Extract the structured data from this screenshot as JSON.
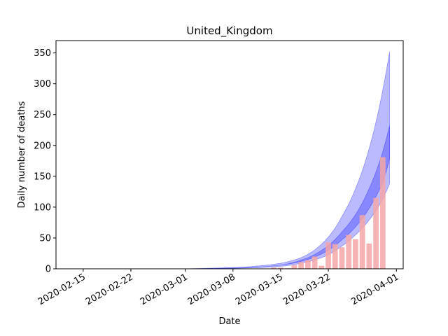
{
  "chart_data": {
    "type": "bar",
    "title": "United_Kingdom",
    "xlabel": "Date",
    "ylabel": "Daily number of deaths",
    "xlim": [
      "2020-02-11",
      "2020-04-02"
    ],
    "ylim": [
      0,
      370
    ],
    "x_ticks": [
      "2020-02-15",
      "2020-02-22",
      "2020-03-01",
      "2020-03-08",
      "2020-03-15",
      "2020-03-22",
      "2020-04-01"
    ],
    "y_ticks": [
      0,
      50,
      100,
      150,
      200,
      250,
      300,
      350
    ],
    "grid": false,
    "legend": "none",
    "colors": {
      "bars": "#f4a6a6",
      "bands": "#0000ff"
    },
    "series": [
      {
        "type": "bar",
        "dates": [
          "2020-03-14",
          "2020-03-15",
          "2020-03-16",
          "2020-03-17",
          "2020-03-18",
          "2020-03-19",
          "2020-03-20",
          "2020-03-21",
          "2020-03-22",
          "2020-03-23",
          "2020-03-24",
          "2020-03-25",
          "2020-03-26",
          "2020-03-27",
          "2020-03-28",
          "2020-03-29",
          "2020-03-30"
        ],
        "values": [
          2,
          2,
          1,
          6,
          11,
          14,
          20,
          5,
          43,
          40,
          35,
          55,
          48,
          87,
          41,
          115,
          181
        ]
      },
      {
        "type": "band",
        "dates": [
          "2020-02-12",
          "2020-02-22",
          "2020-03-01",
          "2020-03-08",
          "2020-03-12",
          "2020-03-15",
          "2020-03-18",
          "2020-03-21",
          "2020-03-24",
          "2020-03-26",
          "2020-03-28",
          "2020-03-30",
          "2020-03-31"
        ],
        "lower": [
          0,
          0,
          0,
          1,
          2,
          4,
          9,
          18,
          37,
          55,
          79,
          113,
          138
        ],
        "upper": [
          0,
          0,
          0,
          2,
          5,
          9,
          18,
          40,
          85,
          130,
          195,
          290,
          352
        ]
      },
      {
        "type": "band",
        "dates": [
          "2020-02-12",
          "2020-02-22",
          "2020-03-01",
          "2020-03-08",
          "2020-03-12",
          "2020-03-15",
          "2020-03-18",
          "2020-03-21",
          "2020-03-24",
          "2020-03-26",
          "2020-03-28",
          "2020-03-30",
          "2020-03-31"
        ],
        "lower": [
          0,
          0,
          0,
          1,
          3,
          6,
          12,
          24,
          47,
          68,
          98,
          140,
          178
        ],
        "upper": [
          0,
          0,
          0,
          1,
          3,
          6,
          14,
          30,
          60,
          88,
          130,
          190,
          232
        ]
      }
    ]
  }
}
